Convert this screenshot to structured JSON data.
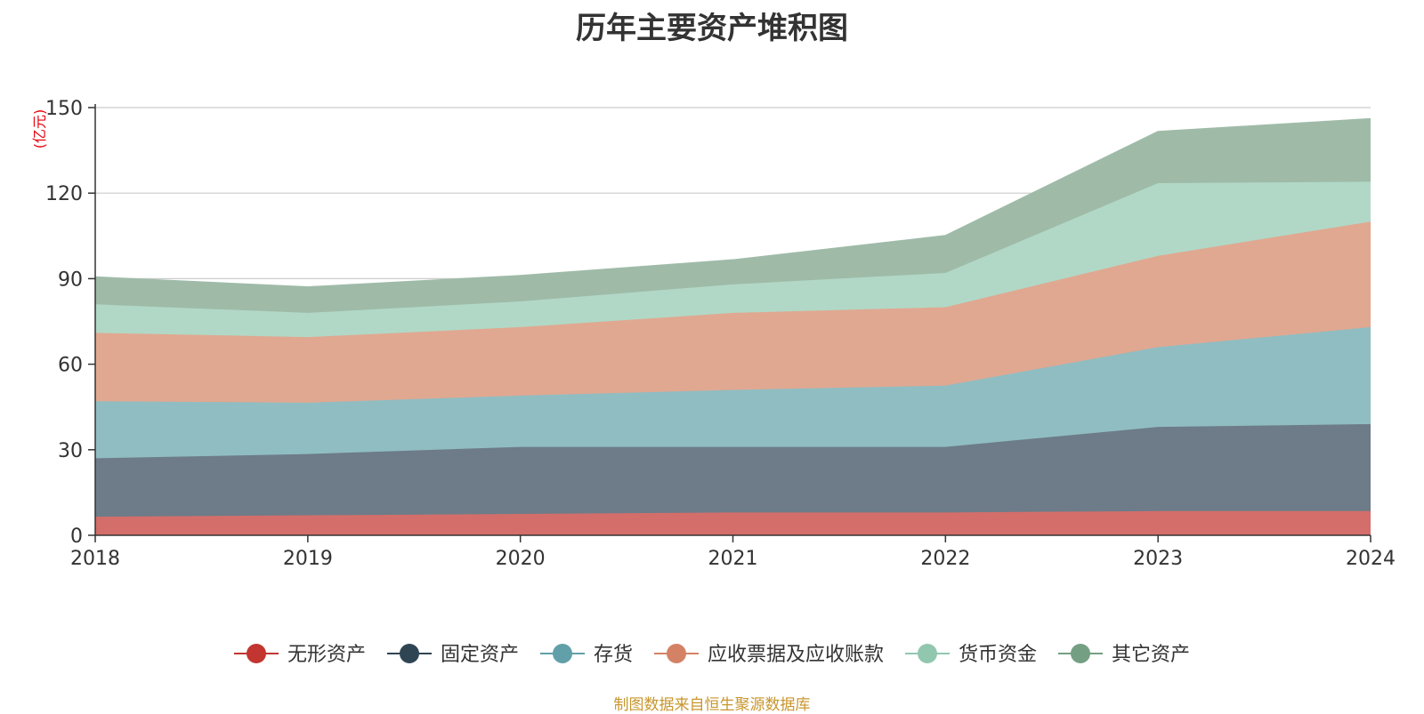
{
  "chart_data": {
    "type": "area",
    "stacked": true,
    "title": "历年主要资产堆积图",
    "unit_label": "(亿元)",
    "x": [
      "2018",
      "2019",
      "2020",
      "2021",
      "2022",
      "2023",
      "2024"
    ],
    "ylim": [
      0,
      150
    ],
    "yticks": [
      0,
      30,
      60,
      90,
      120,
      150
    ],
    "grid": true,
    "legend_position": "bottom",
    "series": [
      {
        "name": "无形资产",
        "color": "#c23531",
        "area_color": "#d46e6b",
        "values": [
          6.5,
          7.0,
          7.5,
          8.0,
          8.0,
          8.5,
          8.5
        ]
      },
      {
        "name": "固定资产",
        "color": "#2f4554",
        "area_color": "#6d7c88",
        "values": [
          20.5,
          21.5,
          23.5,
          23.0,
          23.0,
          29.5,
          30.5
        ]
      },
      {
        "name": "存货",
        "color": "#61a0a8",
        "area_color": "#90bdc2",
        "values": [
          20.0,
          18.0,
          18.0,
          20.0,
          21.5,
          28.0,
          34.0
        ]
      },
      {
        "name": "应收票据及应收账款",
        "color": "#d48265",
        "area_color": "#e0a891",
        "values": [
          24.0,
          23.0,
          24.0,
          27.0,
          27.5,
          32.0,
          37.0
        ]
      },
      {
        "name": "货币资金",
        "color": "#91c7ae",
        "area_color": "#b1d8c6",
        "values": [
          10.0,
          8.5,
          9.0,
          10.0,
          12.0,
          25.5,
          14.0
        ]
      },
      {
        "name": "其它资产",
        "color": "#749f83",
        "area_color": "#9fbba8",
        "values": [
          9.5,
          9.0,
          9.0,
          8.5,
          13.0,
          18.0,
          22.0
        ]
      }
    ]
  },
  "source_note": "制图数据来自恒生聚源数据库"
}
